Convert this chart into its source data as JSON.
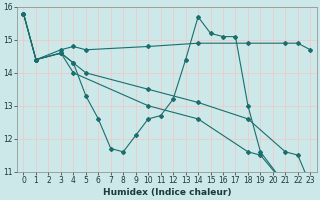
{
  "xlabel": "Humidex (Indice chaleur)",
  "bg_color": "#cce8e8",
  "grid_color": "#f0c8c8",
  "line_color": "#1a6e6e",
  "xlim": [
    -0.5,
    23.5
  ],
  "ylim": [
    11,
    16
  ],
  "yticks": [
    11,
    12,
    13,
    14,
    15,
    16
  ],
  "xticks": [
    0,
    1,
    2,
    3,
    4,
    5,
    6,
    7,
    8,
    9,
    10,
    11,
    12,
    13,
    14,
    15,
    16,
    17,
    18,
    19,
    20,
    21,
    22,
    23
  ],
  "lines": [
    {
      "x": [
        0,
        1,
        3,
        4,
        5,
        6,
        7,
        8,
        9,
        10,
        11,
        12,
        13,
        14,
        15,
        16,
        17,
        18,
        19,
        21,
        22,
        23
      ],
      "y": [
        15.8,
        14.4,
        14.6,
        14.3,
        13.3,
        12.6,
        11.7,
        11.6,
        12.1,
        12.6,
        12.7,
        13.2,
        14.4,
        15.7,
        15.2,
        15.1,
        15.1,
        13.0,
        11.6,
        10.6,
        10.6,
        10.6
      ]
    },
    {
      "x": [
        0,
        1,
        3,
        4,
        5,
        10,
        14,
        18,
        21,
        22,
        23
      ],
      "y": [
        15.8,
        14.4,
        14.7,
        14.8,
        14.7,
        14.8,
        14.9,
        14.9,
        14.9,
        14.9,
        14.7
      ]
    },
    {
      "x": [
        0,
        1,
        3,
        4,
        5,
        10,
        14,
        18,
        21,
        22,
        23
      ],
      "y": [
        15.8,
        14.4,
        14.6,
        14.3,
        14.0,
        13.5,
        13.1,
        12.6,
        11.6,
        11.5,
        10.6
      ]
    },
    {
      "x": [
        0,
        1,
        3,
        4,
        10,
        14,
        18,
        19,
        21,
        22,
        23
      ],
      "y": [
        15.8,
        14.4,
        14.6,
        14.0,
        13.0,
        12.6,
        11.6,
        11.5,
        10.6,
        10.6,
        10.6
      ]
    }
  ]
}
